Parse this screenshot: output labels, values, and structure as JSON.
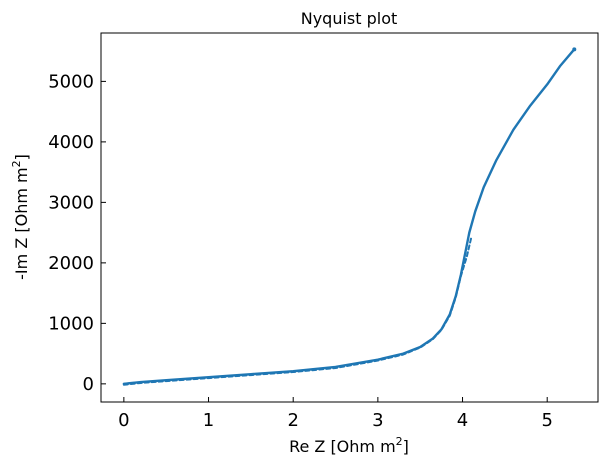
{
  "chart_data": {
    "type": "line",
    "title": "Nyquist plot",
    "xlabel": "Re Z [Ohm m",
    "xlabel_sup": "2",
    "xlabel_end": "]",
    "ylabel": "-Im Z [Ohm m",
    "ylabel_sup": "2",
    "ylabel_end": "]",
    "xlim": [
      -0.27,
      5.6
    ],
    "ylim": [
      -300,
      5800
    ],
    "xticks": [
      0,
      1,
      2,
      3,
      4,
      5
    ],
    "yticks": [
      0,
      1000,
      2000,
      3000,
      4000,
      5000
    ],
    "xtick_labels": [
      "0",
      "1",
      "2",
      "3",
      "4",
      "5"
    ],
    "ytick_labels": [
      "0",
      "1000",
      "2000",
      "3000",
      "4000",
      "5000"
    ],
    "grid": false,
    "series": [
      {
        "line_color": "#1f77b4",
        "x": [
          0,
          0.2,
          0.5,
          1.0,
          1.5,
          2.0,
          2.5,
          3.0,
          3.3,
          3.5,
          3.65,
          3.75,
          3.85,
          3.92,
          3.98,
          4.03,
          4.08,
          4.15,
          4.25,
          4.4,
          4.6,
          4.8,
          5.0,
          5.15,
          5.32
        ],
        "y": [
          0,
          30,
          60,
          110,
          160,
          210,
          280,
          400,
          500,
          610,
          750,
          900,
          1150,
          1450,
          1800,
          2150,
          2500,
          2850,
          3250,
          3700,
          4200,
          4600,
          4950,
          5250,
          5530
        ]
      },
      {
        "line_color": "#1f77b4",
        "dashed": true,
        "x": [
          0,
          0.2,
          0.5,
          1.0,
          1.5,
          2.0,
          2.5,
          3.0,
          3.3,
          3.5,
          3.65,
          3.75,
          3.85,
          3.92,
          3.98,
          4.05,
          4.1
        ],
        "y": [
          -15,
          15,
          45,
          95,
          145,
          195,
          262,
          385,
          485,
          600,
          740,
          890,
          1130,
          1430,
          1780,
          2100,
          2400
        ]
      }
    ]
  }
}
